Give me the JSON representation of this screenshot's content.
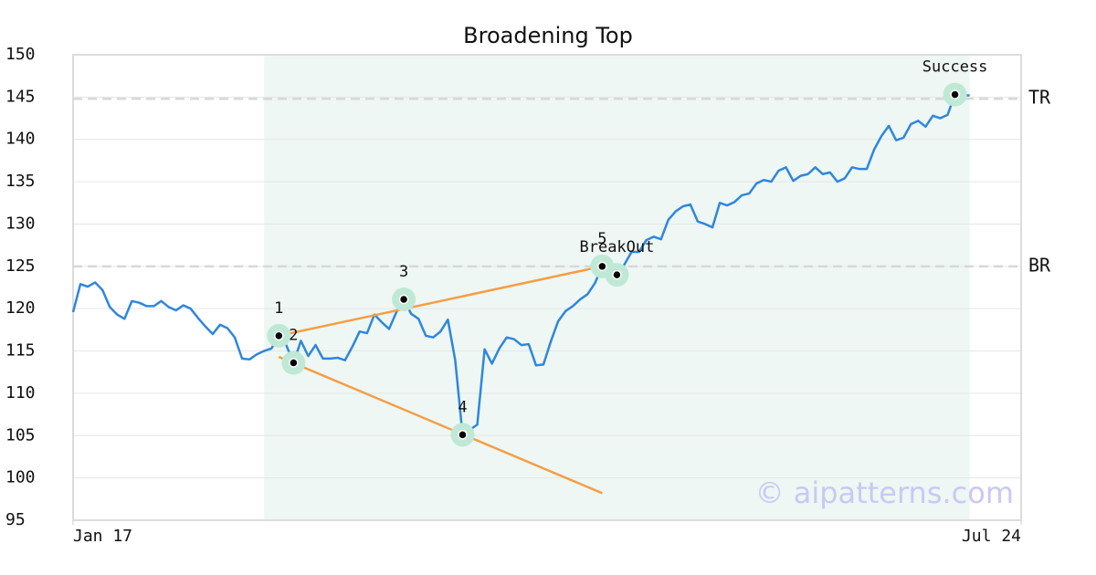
{
  "chart_data": {
    "type": "line",
    "title": "Broadening Top",
    "x": [
      0,
      1,
      2,
      3,
      4,
      5,
      6,
      7,
      8,
      9,
      10,
      11,
      12,
      13,
      14,
      15,
      16,
      17,
      18,
      19,
      20,
      21,
      22,
      23,
      24,
      25,
      26,
      27,
      28,
      29,
      30,
      31,
      32,
      33,
      34,
      35,
      36,
      37,
      38,
      39,
      40,
      41,
      42,
      43,
      44,
      45,
      46,
      47,
      48,
      49,
      50,
      51,
      52,
      53,
      54,
      55,
      56,
      57,
      58,
      59,
      60,
      61,
      62,
      63,
      64,
      65,
      66,
      67,
      68,
      69,
      70,
      71,
      72,
      73,
      74,
      75,
      76,
      77,
      78,
      79,
      80,
      81,
      82,
      83,
      84,
      85,
      86,
      87,
      88,
      89,
      90,
      91,
      92,
      93,
      94,
      95,
      96,
      97,
      98,
      99,
      100,
      101,
      102,
      103,
      104,
      105,
      106,
      107,
      108,
      109,
      110,
      111,
      112,
      113,
      114,
      115,
      116,
      117,
      118,
      119,
      120,
      121,
      122
    ],
    "series": [
      {
        "color": "#2f86dd",
        "values": [
          119.6,
          122.9,
          122.6,
          123.1,
          122.2,
          120.2,
          119.3,
          118.8,
          120.9,
          120.7,
          120.3,
          120.3,
          120.9,
          120.2,
          119.8,
          120.4,
          120.0,
          118.9,
          117.9,
          117.0,
          118.1,
          117.7,
          116.6,
          114.1,
          114.0,
          114.6,
          115.0,
          115.3,
          116.8,
          115.7,
          113.6,
          116.2,
          114.4,
          115.7,
          114.1,
          114.1,
          114.2,
          113.9,
          115.5,
          117.3,
          117.1,
          119.3,
          118.4,
          117.6,
          119.6,
          121.1,
          119.4,
          118.8,
          116.8,
          116.6,
          117.3,
          118.7,
          113.9,
          105.1,
          105.7,
          106.3,
          115.2,
          113.5,
          115.3,
          116.6,
          116.4,
          115.7,
          115.8,
          113.3,
          113.4,
          116.1,
          118.5,
          119.7,
          120.3,
          121.1,
          121.7,
          123.0,
          125.0,
          125.0,
          124.0,
          125.2,
          126.7,
          126.7,
          128.1,
          128.5,
          128.2,
          130.5,
          131.5,
          132.1,
          132.3,
          130.3,
          130.0,
          129.6,
          132.5,
          132.2,
          132.6,
          133.4,
          133.6,
          134.8,
          135.2,
          135.0,
          136.3,
          136.7,
          135.1,
          135.7,
          135.9,
          136.7,
          135.9,
          136.1,
          135.0,
          135.4,
          136.7,
          136.5,
          136.5,
          138.8,
          140.4,
          141.6,
          139.9,
          140.2,
          141.8,
          142.2,
          141.5,
          142.8,
          142.5,
          142.9,
          145.3,
          145.2,
          145.2
        ]
      }
    ],
    "xlim": [
      0,
      129
    ],
    "xticks": [
      {
        "value": 0,
        "label": "Jan 17"
      },
      {
        "value": 129,
        "label": "Jul 24"
      }
    ],
    "ylim": [
      95,
      150
    ],
    "yticks": [
      95,
      100,
      105,
      110,
      115,
      120,
      125,
      130,
      135,
      140,
      145,
      150
    ],
    "grid": true,
    "highlight_xlim": [
      26,
      122
    ],
    "highlight_color": "#eef7f3",
    "reference_lines": [
      {
        "label": "TR",
        "value": 144.8
      },
      {
        "label": "BR",
        "value": 125.0
      }
    ],
    "trendlines": [
      {
        "color": "#f59e45",
        "x": [
          28,
          72
        ],
        "values": [
          116.8,
          125.0
        ]
      },
      {
        "color": "#f59e45",
        "x": [
          28,
          72
        ],
        "values": [
          114.3,
          98.2
        ]
      }
    ],
    "points": [
      {
        "label": "1",
        "x": 28,
        "value": 116.8
      },
      {
        "label": "2",
        "x": 30,
        "value": 113.6
      },
      {
        "label": "3",
        "x": 45,
        "value": 121.1
      },
      {
        "label": "4",
        "x": 53,
        "value": 105.1
      },
      {
        "label": "5",
        "x": 72,
        "value": 125.0
      },
      {
        "label": "BreakOut",
        "x": 74,
        "value": 124.0
      },
      {
        "label": "Success",
        "x": 120,
        "value": 145.3
      }
    ],
    "watermark": "© aipatterns.com"
  }
}
